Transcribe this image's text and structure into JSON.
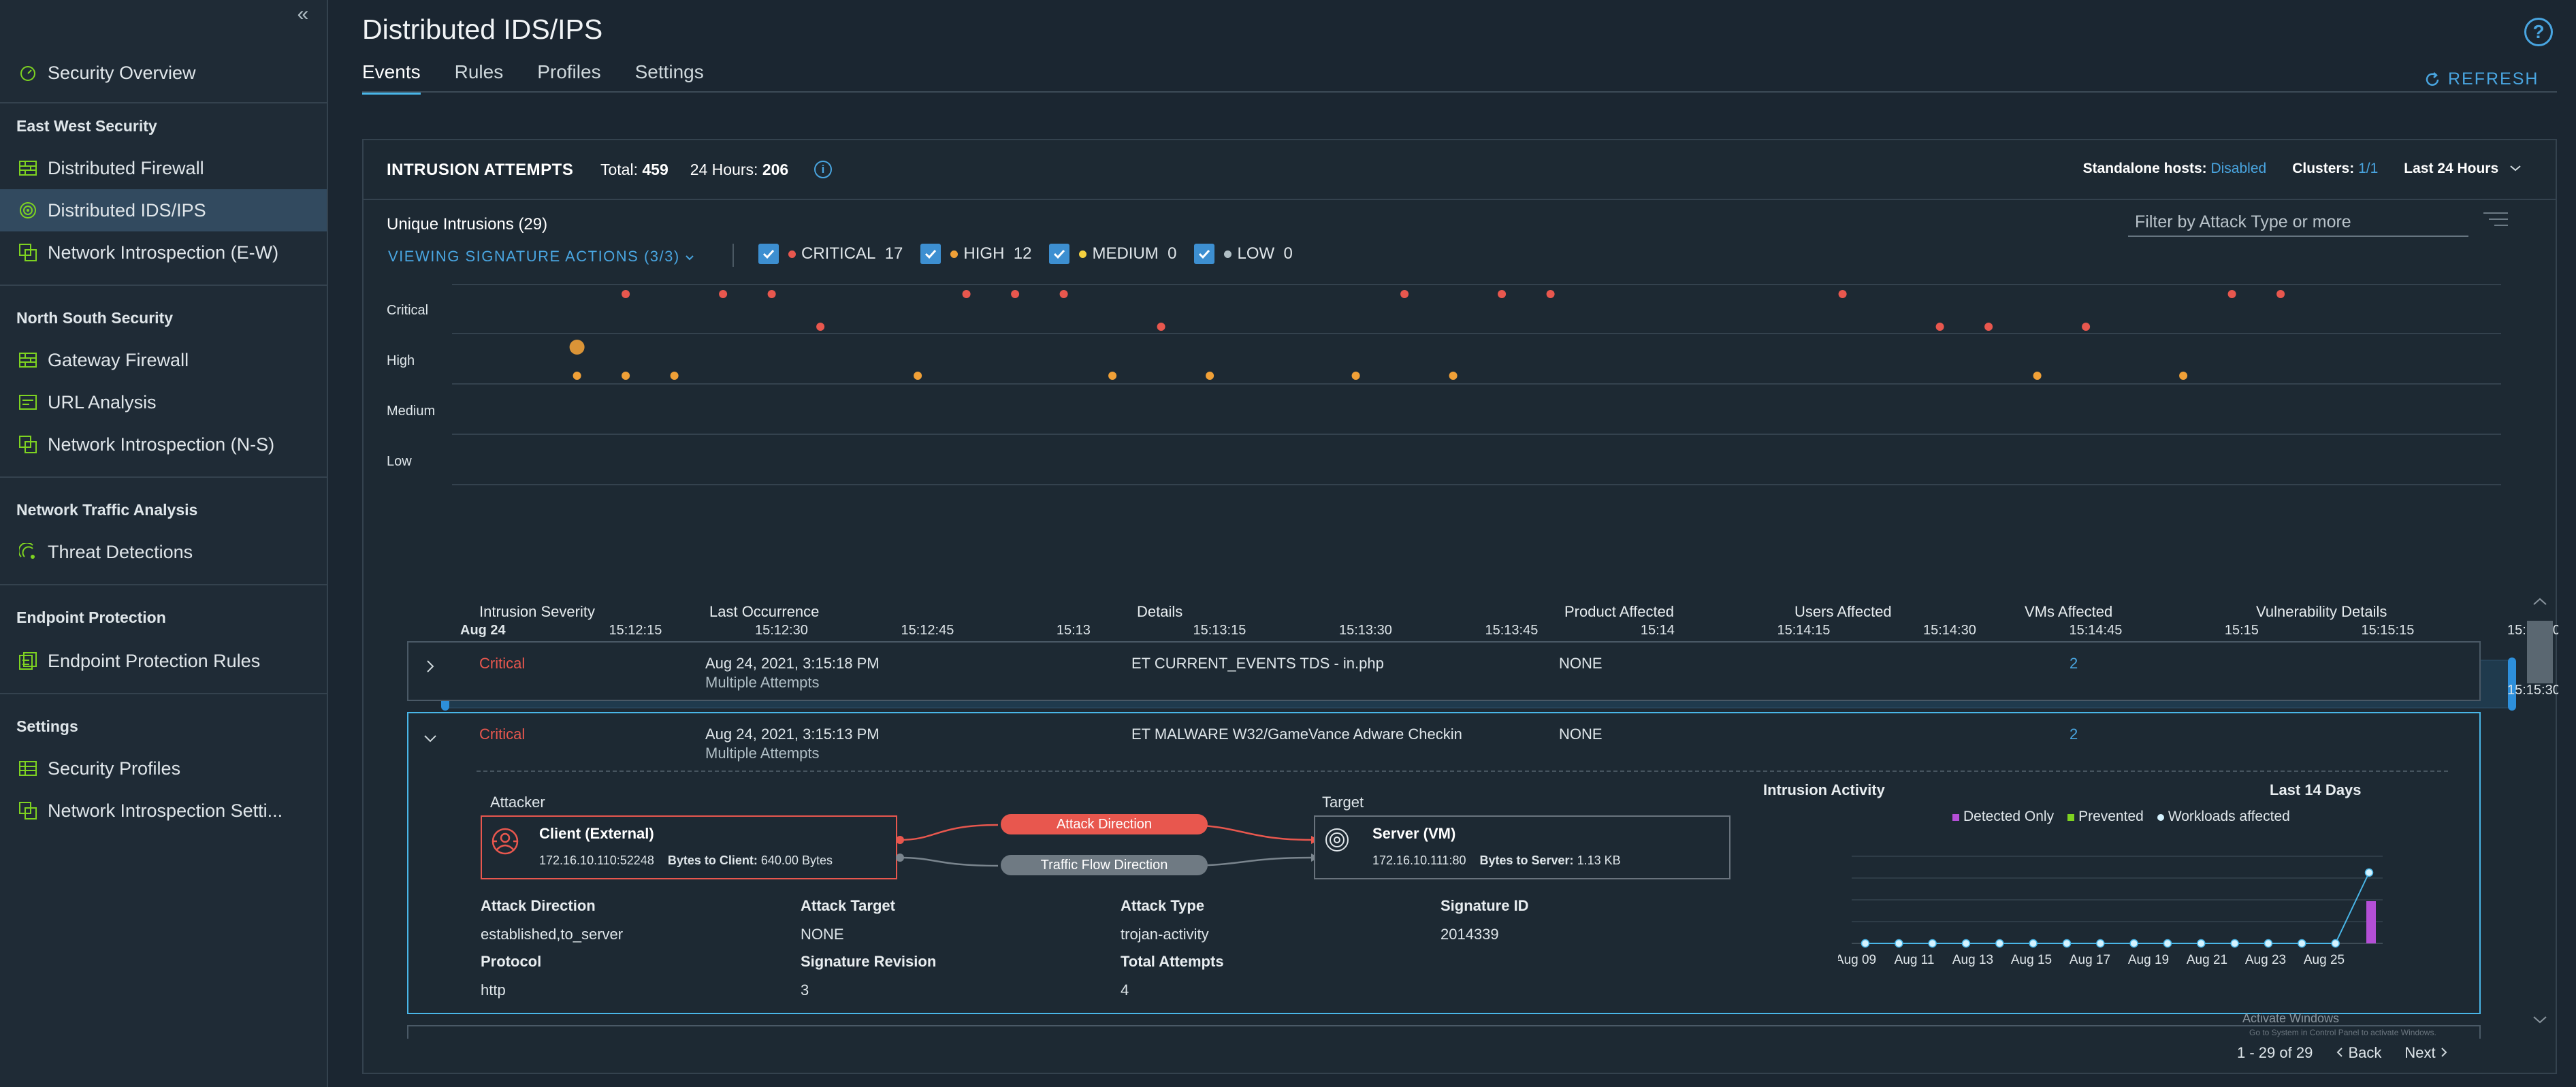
{
  "sidebar": {
    "collapse_label": "«",
    "security_overview": "Security Overview",
    "sections": {
      "east_west": "East West Security",
      "north_south": "North South Security",
      "nta": "Network Traffic Analysis",
      "endpoint": "Endpoint Protection",
      "settings": "Settings"
    },
    "items": {
      "distributed_firewall": "Distributed Firewall",
      "distributed_ids": "Distributed IDS/IPS",
      "ni_ew": "Network Introspection (E-W)",
      "gateway_firewall": "Gateway Firewall",
      "url_analysis": "URL Analysis",
      "ni_ns": "Network Introspection (N-S)",
      "threat_detections": "Threat Detections",
      "endpoint_rules": "Endpoint Protection Rules",
      "security_profiles": "Security Profiles",
      "ni_settings": "Network Introspection Setti..."
    }
  },
  "header": {
    "title": "Distributed IDS/IPS",
    "help": "?",
    "tabs": [
      "Events",
      "Rules",
      "Profiles",
      "Settings"
    ],
    "refresh": "REFRESH"
  },
  "intrusion": {
    "title": "INTRUSION ATTEMPTS",
    "total_label": "Total:",
    "total": "459",
    "h24_label": "24 Hours:",
    "h24": "206",
    "info": "i",
    "standalone_label": "Standalone hosts:",
    "standalone_value": "Disabled",
    "clusters_label": "Clusters:",
    "clusters_value": "1/1",
    "range": "Last 24 Hours",
    "unique": "Unique Intrusions (29)",
    "filter_placeholder": "Filter by Attack Type or more",
    "view_actions": "VIEWING SIGNATURE ACTIONS (3/3)",
    "severity_filters": [
      {
        "label": "CRITICAL",
        "count": "17",
        "color": "#e8574e"
      },
      {
        "label": "HIGH",
        "count": "12",
        "color": "#f0a037"
      },
      {
        "label": "MEDIUM",
        "count": "0",
        "color": "#f4d03f"
      },
      {
        "label": "LOW",
        "count": "0",
        "color": "#b0bec5"
      }
    ]
  },
  "chart_data": {
    "type": "scatter",
    "y_categories": [
      "Critical",
      "High",
      "Medium",
      "Low"
    ],
    "x_ticks": [
      "Aug 24",
      "15:12:15",
      "15:12:30",
      "15:12:45",
      "15:13",
      "15:13:15",
      "15:13:30",
      "15:13:45",
      "15:14",
      "15:14:15",
      "15:14:30",
      "15:14:45",
      "15:15",
      "15:15:15",
      "15:15:30"
    ],
    "series": [
      {
        "name": "Critical",
        "color": "#e8574e",
        "points": [
          {
            "t": "15:12:17",
            "lane": 0
          },
          {
            "t": "15:12:27",
            "lane": 0
          },
          {
            "t": "15:12:32",
            "lane": 0
          },
          {
            "t": "15:12:52",
            "lane": 0
          },
          {
            "t": "15:12:57",
            "lane": 0
          },
          {
            "t": "15:13:02",
            "lane": 0
          },
          {
            "t": "15:13:37",
            "lane": 0
          },
          {
            "t": "15:13:47",
            "lane": 0
          },
          {
            "t": "15:13:52",
            "lane": 0
          },
          {
            "t": "15:14:22",
            "lane": 0
          },
          {
            "t": "15:15:02",
            "lane": 0
          },
          {
            "t": "15:15:07",
            "lane": 0
          },
          {
            "t": "15:12:37",
            "lane": 0.5
          },
          {
            "t": "15:13:12",
            "lane": 0.5
          },
          {
            "t": "15:14:32",
            "lane": 0.5
          },
          {
            "t": "15:14:37",
            "lane": 0.5
          },
          {
            "t": "15:14:47",
            "lane": 0.5
          }
        ]
      },
      {
        "name": "High",
        "color": "#f0a037",
        "points": [
          {
            "t": "15:12:12",
            "lane": 1,
            "big": true
          },
          {
            "t": "15:12:12",
            "lane": 1.5
          },
          {
            "t": "15:12:17",
            "lane": 1.5
          },
          {
            "t": "15:12:22",
            "lane": 1.5
          },
          {
            "t": "15:12:47",
            "lane": 1.5
          },
          {
            "t": "15:13:07",
            "lane": 1.5
          },
          {
            "t": "15:13:17",
            "lane": 1.5
          },
          {
            "t": "15:13:32",
            "lane": 1.5
          },
          {
            "t": "15:13:42",
            "lane": 1.5
          },
          {
            "t": "15:14:42",
            "lane": 1.5
          },
          {
            "t": "15:14:57",
            "lane": 1.5
          }
        ]
      }
    ]
  },
  "table": {
    "columns": [
      "Intrusion Severity",
      "Last Occurrence",
      "Details",
      "Product Affected",
      "Users Affected",
      "VMs Affected",
      "Vulnerability Details"
    ],
    "rows": [
      {
        "severity": "Critical",
        "occurrence": "Aug 24, 2021, 3:15:18 PM",
        "attempts": "Multiple Attempts",
        "details": "ET CURRENT_EVENTS TDS - in.php",
        "product": "NONE",
        "vms": "2"
      },
      {
        "severity": "Critical",
        "occurrence": "Aug 24, 2021, 3:15:13 PM",
        "attempts": "Multiple Attempts",
        "details": "ET MALWARE W32/GameVance Adware Checkin",
        "product": "NONE",
        "vms": "2"
      }
    ]
  },
  "detail": {
    "attacker_label": "Attacker",
    "target_label": "Target",
    "client_title": "Client (External)",
    "client_ip": "172.16.10.110:52248",
    "client_bytes_label": "Bytes to Client:",
    "client_bytes": "640.00 Bytes",
    "server_title": "Server (VM)",
    "server_ip": "172.16.10.111:80",
    "server_bytes_label": "Bytes to Server:",
    "server_bytes": "1.13 KB",
    "attack_direction_pill": "Attack Direction",
    "traffic_flow_pill": "Traffic Flow Direction",
    "fields": {
      "attack_direction_label": "Attack Direction",
      "attack_direction": "established,to_server",
      "attack_target_label": "Attack Target",
      "attack_target": "NONE",
      "attack_type_label": "Attack Type",
      "attack_type": "trojan-activity",
      "signature_id_label": "Signature ID",
      "signature_id": "2014339",
      "protocol_label": "Protocol",
      "protocol": "http",
      "sig_rev_label": "Signature Revision",
      "sig_rev": "3",
      "total_attempts_label": "Total Attempts",
      "total_attempts": "4"
    },
    "activity": {
      "title": "Intrusion Activity",
      "range": "Last 14 Days",
      "legend": [
        {
          "label": "Detected Only",
          "color": "#b44fd6"
        },
        {
          "label": "Prevented",
          "color": "#7ed321"
        },
        {
          "label": "Workloads affected",
          "color": "#d5f3ff"
        }
      ],
      "x_labels": [
        "Aug 09",
        "Aug 11",
        "Aug 13",
        "Aug 15",
        "Aug 17",
        "Aug 19",
        "Aug 21",
        "Aug 23",
        "Aug 25"
      ],
      "workloads": [
        0,
        0,
        0,
        0,
        0,
        0,
        0,
        0,
        0,
        0,
        0,
        0,
        0,
        0,
        0,
        2
      ],
      "detected_only_last": 1
    }
  },
  "footer": {
    "activate": "Activate Windows",
    "activate_sub": "Go to System in Control Panel to activate Windows.",
    "pagination": "1 - 29 of 29",
    "back": "Back",
    "next": "Next"
  }
}
